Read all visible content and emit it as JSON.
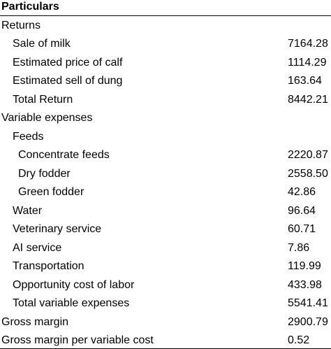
{
  "table": {
    "header": "Particulars",
    "rows": [
      {
        "label": "Returns"
      },
      {
        "label": "Sale of milk",
        "value": "7164.28"
      },
      {
        "label": "Estimated price of calf",
        "value": "1114.29"
      },
      {
        "label": "Estimated sell of dung",
        "value": "163.64"
      },
      {
        "label": "Total Return",
        "value": "8442.21"
      },
      {
        "label": "Variable expenses"
      },
      {
        "label": "Feeds"
      },
      {
        "label": "Concentrate feeds",
        "value": "2220.87"
      },
      {
        "label": "Dry fodder",
        "value": "2558.50"
      },
      {
        "label": "Green fodder",
        "value": "42.86"
      },
      {
        "label": "Water",
        "value": "96.64"
      },
      {
        "label": "Veterinary service",
        "value": "60.71"
      },
      {
        "label": "AI service",
        "value": "7.86"
      },
      {
        "label": "Transportation",
        "value": "119.99"
      },
      {
        "label": "Opportunity cost of labor",
        "value": "433.98"
      },
      {
        "label": "Total variable expenses",
        "value": "5541.41"
      },
      {
        "label": "Gross margin",
        "value": "2900.79"
      },
      {
        "label": "Gross margin per variable cost",
        "value": "0.52"
      }
    ]
  }
}
